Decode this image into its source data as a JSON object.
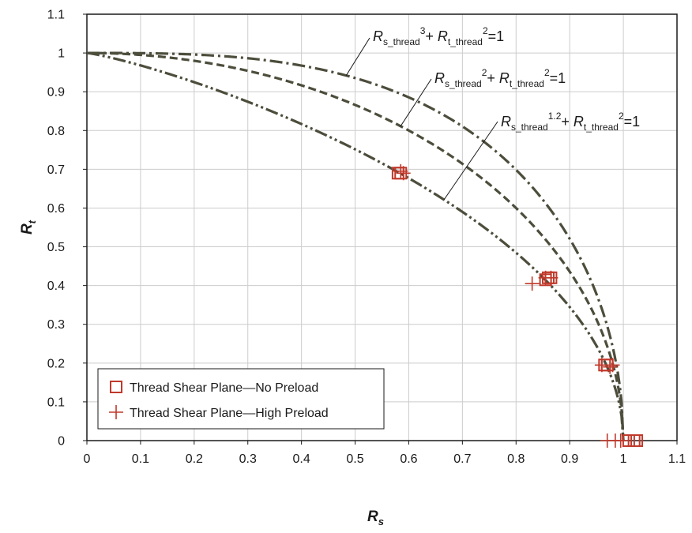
{
  "chart_data": {
    "type": "scatter",
    "title": "",
    "xlabel": {
      "main": "R",
      "sub": "s"
    },
    "ylabel": {
      "main": "R",
      "sub": "t"
    },
    "xlim": [
      0,
      1.1
    ],
    "ylim": [
      0,
      1.1
    ],
    "x_ticks": [
      "0",
      "0.1",
      "0.2",
      "0.3",
      "0.4",
      "0.5",
      "0.6",
      "0.7",
      "0.8",
      "0.9",
      "1",
      "1.1"
    ],
    "y_ticks": [
      "0",
      "0.1",
      "0.2",
      "0.3",
      "0.4",
      "0.5",
      "0.6",
      "0.7",
      "0.8",
      "0.9",
      "1",
      "1.1"
    ],
    "grid": true,
    "legend_position": "bottom-left",
    "colors": {
      "curve": "#4d4d3c",
      "marker": "#c0392b",
      "grid": "#cccccc",
      "axis": "#1a1a1a"
    },
    "curves": [
      {
        "exponent": 3,
        "dash": "dash-dot",
        "label": {
          "r": "R",
          "sub1": "s_thread",
          "sup1": "3",
          "mid": "+ ",
          "sub2": "t_thread",
          "sup2": "2",
          "end": "=1"
        }
      },
      {
        "exponent": 2,
        "dash": "dash",
        "label": {
          "r": "R",
          "sub1": "s_thread",
          "sup1": "2",
          "mid": "+ ",
          "sub2": "t_thread",
          "sup2": "2",
          "end": "=1"
        }
      },
      {
        "exponent": 1.2,
        "dash": "dash-dot-dot",
        "label": {
          "r": "R",
          "sub1": "s_thread",
          "sup1": "1.2",
          "mid": "+ ",
          "sub2": "t_thread",
          "sup2": "2",
          "end": "=1"
        }
      }
    ],
    "series": [
      {
        "name": "Thread Shear Plane—No Preload",
        "marker": "square",
        "points": [
          [
            0.58,
            0.69
          ],
          [
            0.585,
            0.69
          ],
          [
            0.855,
            0.415
          ],
          [
            0.86,
            0.42
          ],
          [
            0.865,
            0.42
          ],
          [
            0.965,
            0.195
          ],
          [
            0.97,
            0.195
          ],
          [
            1.01,
            0.0
          ],
          [
            1.02,
            0.0
          ],
          [
            1.025,
            0.0
          ]
        ]
      },
      {
        "name": "Thread Shear Plane—High Preload",
        "marker": "plus",
        "points": [
          [
            0.585,
            0.695
          ],
          [
            0.59,
            0.69
          ],
          [
            0.83,
            0.405
          ],
          [
            0.855,
            0.42
          ],
          [
            0.865,
            0.42
          ],
          [
            0.96,
            0.195
          ],
          [
            0.975,
            0.19
          ],
          [
            0.98,
            0.195
          ],
          [
            0.97,
            0.0
          ],
          [
            0.985,
            0.0
          ],
          [
            0.995,
            0.0
          ]
        ]
      }
    ]
  }
}
